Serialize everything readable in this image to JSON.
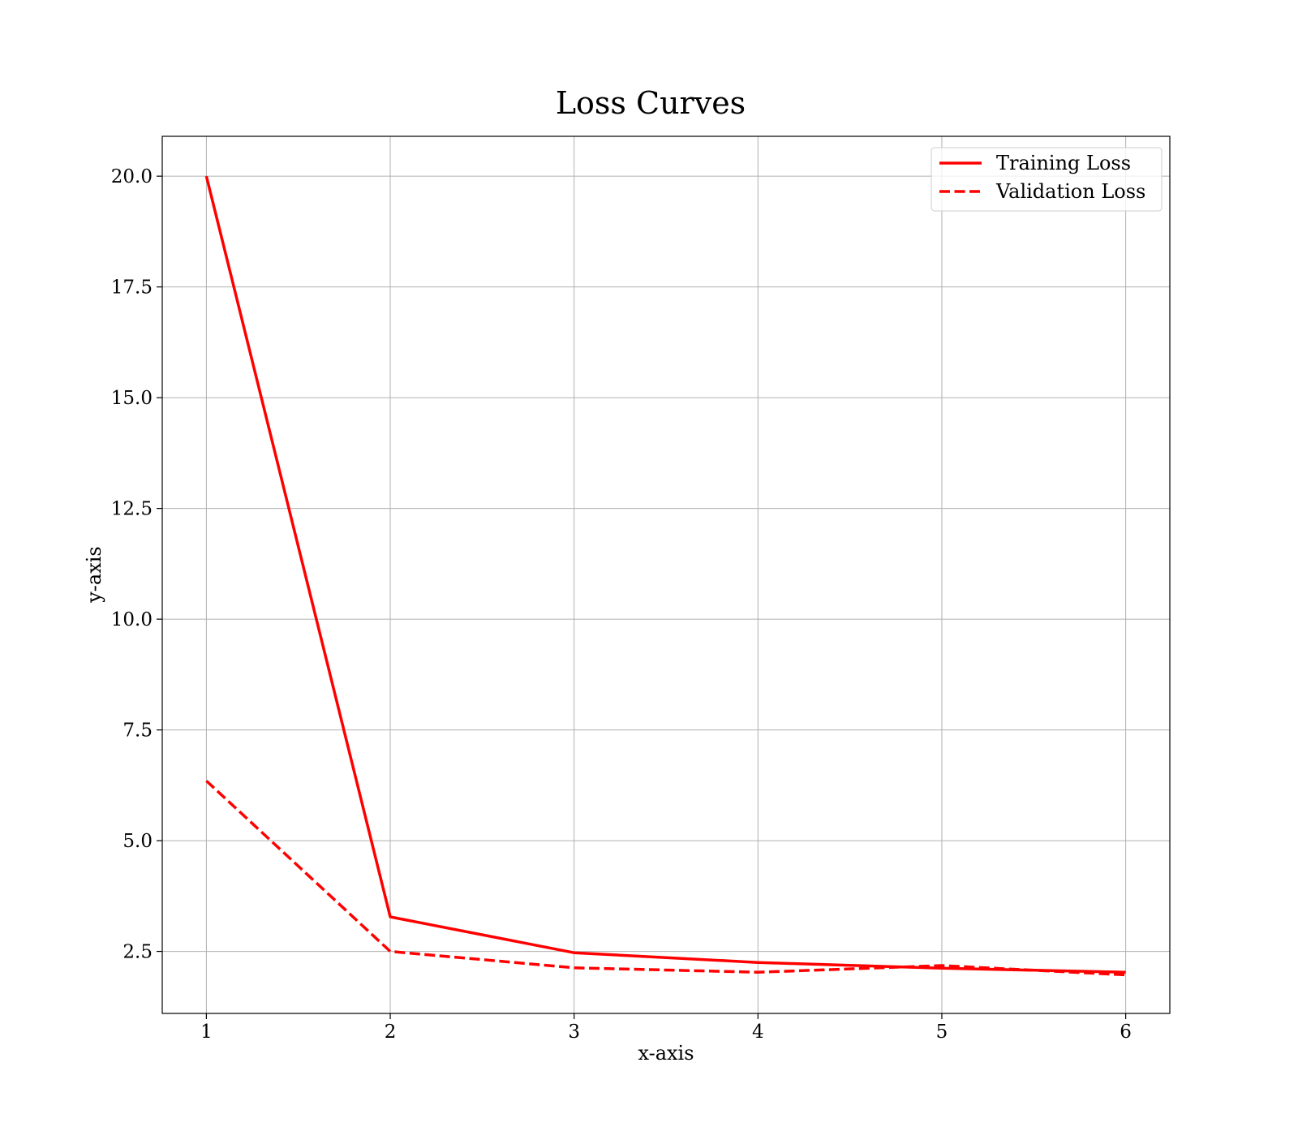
{
  "chart_data": {
    "type": "line",
    "title": "Loss Curves",
    "xlabel": "x-axis",
    "ylabel": "y-axis",
    "x": [
      1,
      2,
      3,
      4,
      5,
      6
    ],
    "xlim": [
      0.76,
      6.24
    ],
    "ylim": [
      1.1,
      20.9
    ],
    "xticks": [
      1,
      2,
      3,
      4,
      5,
      6
    ],
    "yticks": [
      2.5,
      5.0,
      7.5,
      10.0,
      12.5,
      15.0,
      17.5,
      20.0
    ],
    "ytick_labels": [
      "2.5",
      "5.0",
      "7.5",
      "10.0",
      "12.5",
      "15.0",
      "17.5",
      "20.0"
    ],
    "xtick_labels": [
      "1",
      "2",
      "3",
      "4",
      "5",
      "6"
    ],
    "grid": true,
    "legend_position": "top-right",
    "series": [
      {
        "name": "Training Loss",
        "values": [
          20.0,
          3.28,
          2.47,
          2.25,
          2.12,
          2.03
        ],
        "color": "#ff0000",
        "style": "solid"
      },
      {
        "name": "Validation Loss",
        "values": [
          6.35,
          2.5,
          2.13,
          2.03,
          2.18,
          1.97
        ],
        "color": "#ff0000",
        "style": "dashed"
      }
    ]
  }
}
